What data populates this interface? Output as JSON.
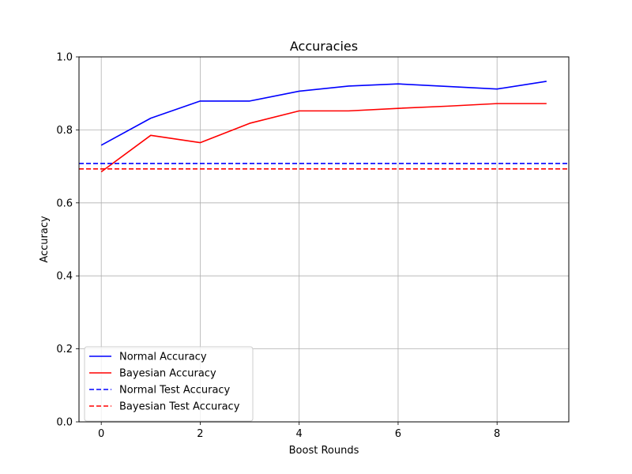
{
  "chart_data": {
    "type": "line",
    "title": "Accuracies",
    "xlabel": "Boost Rounds",
    "ylabel": "Accuracy",
    "xlim": [
      -0.45,
      9.45
    ],
    "ylim": [
      0.0,
      1.0
    ],
    "xticks": [
      0,
      2,
      4,
      6,
      8
    ],
    "yticks": [
      0.0,
      0.2,
      0.4,
      0.6,
      0.8,
      1.0
    ],
    "xtick_labels": [
      "0",
      "2",
      "4",
      "6",
      "8"
    ],
    "ytick_labels": [
      "0.0",
      "0.2",
      "0.4",
      "0.6",
      "0.8",
      "1.0"
    ],
    "grid": true,
    "legend_position": "lower-left",
    "x": [
      0,
      1,
      2,
      3,
      4,
      5,
      6,
      7,
      8,
      9
    ],
    "series": [
      {
        "name": "Normal Accuracy",
        "color": "#0000ff",
        "style": "solid",
        "values": [
          0.758,
          0.832,
          0.879,
          0.879,
          0.906,
          0.92,
          0.926,
          0.919,
          0.912,
          0.933
        ]
      },
      {
        "name": "Bayesian Accuracy",
        "color": "#ff0000",
        "style": "solid",
        "values": [
          0.685,
          0.785,
          0.765,
          0.818,
          0.852,
          0.852,
          0.859,
          0.865,
          0.872,
          0.872
        ]
      },
      {
        "name": "Normal Test Accuracy",
        "color": "#0000ff",
        "style": "dashed",
        "constant": 0.708
      },
      {
        "name": "Bayesian Test Accuracy",
        "color": "#ff0000",
        "style": "dashed",
        "constant": 0.693
      }
    ]
  }
}
